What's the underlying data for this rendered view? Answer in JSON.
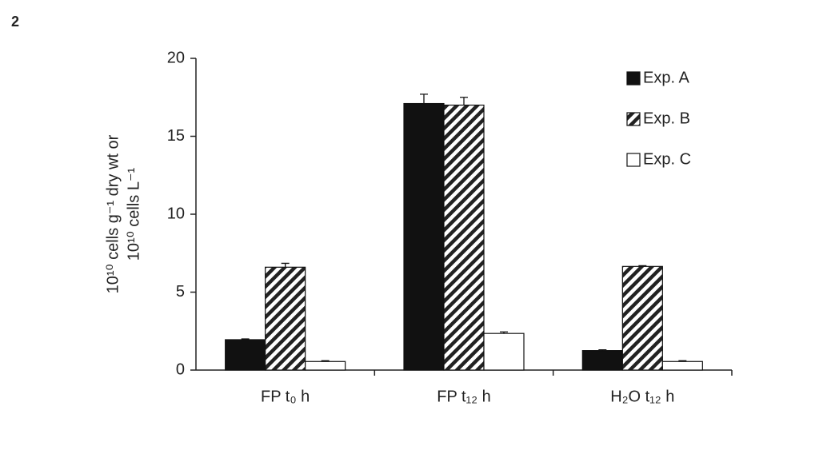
{
  "panel_label": "2",
  "chart_data": {
    "type": "bar",
    "ylabel": [
      "10¹⁰ cells g⁻¹ dry wt or",
      "10¹⁰ cells L⁻¹"
    ],
    "categories": [
      "FP t₀ h",
      "FP t₁₂ h",
      "H₂O t₁₂ h"
    ],
    "series": [
      {
        "name": "Exp. A",
        "color": "#111111",
        "fill": "solid",
        "values": [
          1.95,
          17.1,
          1.25
        ],
        "errors": [
          0.05,
          0.6,
          0.05
        ]
      },
      {
        "name": "Exp. B",
        "color": "#222222",
        "fill": "hatch",
        "values": [
          6.6,
          17.0,
          6.65
        ],
        "errors": [
          0.25,
          0.5,
          0.05
        ]
      },
      {
        "name": "Exp. C",
        "color": "#ffffff",
        "fill": "solid",
        "values": [
          0.55,
          2.35,
          0.55
        ],
        "errors": [
          0.05,
          0.1,
          0.05
        ]
      }
    ],
    "ylim": [
      0,
      20
    ],
    "yticks": [
      0,
      5,
      10,
      15,
      20
    ],
    "grid": false,
    "legend": "top-right"
  }
}
